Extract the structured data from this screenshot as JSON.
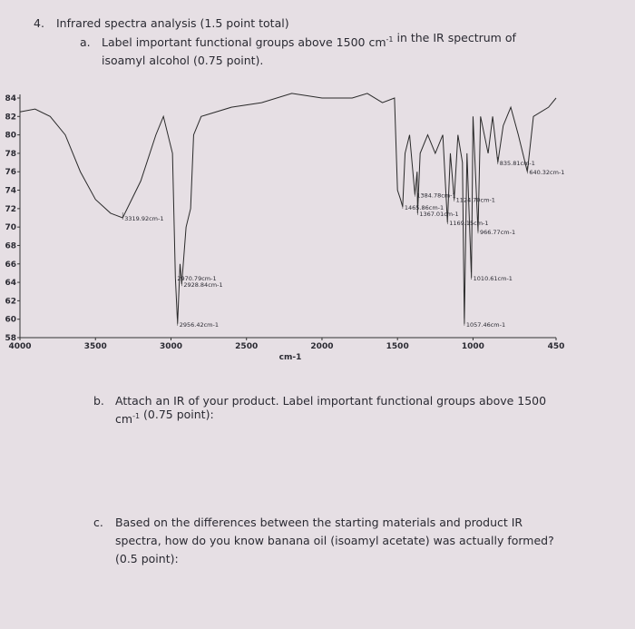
{
  "question_4": {
    "number": "4.",
    "title": "Infrared spectra analysis (1.5 point total)"
  },
  "part_a": {
    "letter": "a.",
    "lines": [
      [
        "Label important functional groups above 1500 cm",
        {
          "sup": "-1"
        },
        " in the IR spectrum of"
      ],
      [
        "isoamyl alcohol (0.75 point)."
      ]
    ]
  },
  "chart_data": {
    "type": "line",
    "x_label": "cm-1",
    "xlim": [
      4000,
      450
    ],
    "xticks": [
      4000,
      3500,
      3000,
      2500,
      2000,
      1500,
      1000,
      450
    ],
    "ylim": [
      58,
      84
    ],
    "yticks": [
      58,
      60,
      62,
      64,
      66,
      68,
      70,
      72,
      74,
      76,
      78,
      80,
      82,
      84
    ],
    "x": [
      4000,
      3900,
      3800,
      3700,
      3600,
      3500,
      3400,
      3319.92,
      3200,
      3100,
      3050,
      2990,
      2970.79,
      2956.42,
      2940,
      2928.84,
      2900,
      2870,
      2850,
      2800,
      2600,
      2400,
      2200,
      2000,
      1800,
      1700,
      1600,
      1520,
      1500,
      1480,
      1465.86,
      1450,
      1420,
      1384.78,
      1370,
      1367.01,
      1350,
      1300,
      1250,
      1200,
      1169.15,
      1150,
      1124.7,
      1100,
      1070,
      1057.46,
      1040,
      1010.61,
      1000,
      966.77,
      950,
      900,
      870,
      835.81,
      800,
      750,
      700,
      640.32,
      600,
      500,
      450
    ],
    "series": [
      {
        "color": "#2a2a2a",
        "values": [
          82.5,
          82.8,
          82,
          80,
          76,
          73,
          71.5,
          71,
          75,
          80,
          82,
          78,
          64.5,
          59.5,
          66,
          63.8,
          70,
          72,
          80,
          82,
          83,
          83.5,
          84.5,
          84,
          84,
          84.5,
          83.5,
          84,
          74,
          73,
          72.2,
          78,
          80,
          73.5,
          76,
          71.5,
          78,
          80,
          78,
          80,
          70.5,
          78,
          73,
          80,
          77,
          59.5,
          78,
          64.5,
          82,
          69.5,
          82,
          78,
          82,
          77,
          81,
          83,
          80,
          76,
          82,
          83,
          84
        ]
      }
    ],
    "peaks": [
      {
        "x": 3319.92,
        "y": 71,
        "label": "3319.92cm-1"
      },
      {
        "x": 2970.79,
        "y": 64.5,
        "label": "2970.79cm-1"
      },
      {
        "x": 2928.84,
        "y": 63.8,
        "label": "2928.84cm-1"
      },
      {
        "x": 2956.42,
        "y": 59.5,
        "label": "2956.42cm-1"
      },
      {
        "x": 1465.86,
        "y": 72.2,
        "label": "1465.86cm-1"
      },
      {
        "x": 1384.78,
        "y": 73.5,
        "label": "1384.78cm-1"
      },
      {
        "x": 1367.01,
        "y": 71.5,
        "label": "1367.01cm-1"
      },
      {
        "x": 1169.15,
        "y": 70.5,
        "label": "1169.15cm-1"
      },
      {
        "x": 1124.7,
        "y": 73,
        "label": "1124.70cm-1"
      },
      {
        "x": 1057.46,
        "y": 59.5,
        "label": "1057.46cm-1"
      },
      {
        "x": 1010.61,
        "y": 64.5,
        "label": "1010.61cm-1"
      },
      {
        "x": 966.77,
        "y": 69.5,
        "label": "966.77cm-1"
      },
      {
        "x": 835.81,
        "y": 77,
        "label": "835.81cm-1"
      },
      {
        "x": 640.32,
        "y": 76,
        "label": "640.32cm-1"
      }
    ]
  },
  "part_b": {
    "letter": "b.",
    "lines": [
      [
        "Attach an IR of your product. Label important functional groups above 1500"
      ],
      [
        "cm",
        {
          "sup": "-1"
        },
        " (0.75 point):"
      ]
    ]
  },
  "part_c": {
    "letter": "c.",
    "lines": [
      [
        "Based on the differences between the starting materials and product IR"
      ],
      [
        "spectra, how do you know banana oil (isoamyl acetate) was actually formed?"
      ],
      [
        "(0.5 point):"
      ]
    ]
  }
}
